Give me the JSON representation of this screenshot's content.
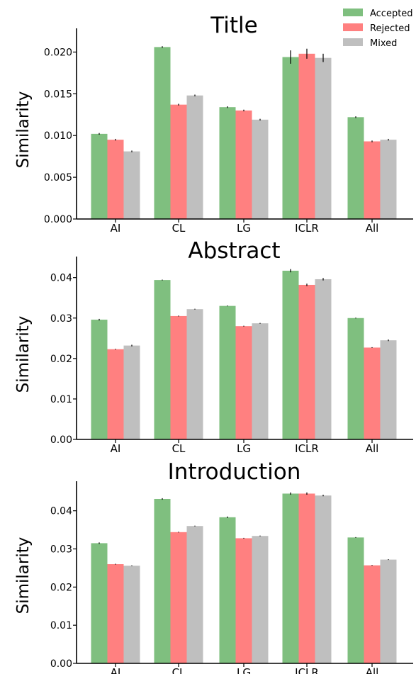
{
  "colors": {
    "accepted": "#7fbf7f",
    "rejected": "#ff8080",
    "mixed": "#bfbfbf",
    "axis": "#000000"
  },
  "legend": {
    "placement": "top-right",
    "items": [
      "Accepted",
      "Rejected",
      "Mixed"
    ]
  },
  "chart_data": [
    {
      "type": "bar",
      "title": "Title",
      "xlabel": "",
      "ylabel": "Similarity",
      "categories": [
        "AI",
        "CL",
        "LG",
        "ICLR",
        "All"
      ],
      "ylim": [
        0,
        0.0225
      ],
      "yticks": [
        0.0,
        0.005,
        0.01,
        0.015,
        0.02
      ],
      "ytick_labels": [
        "0.000",
        "0.005",
        "0.010",
        "0.015",
        "0.020"
      ],
      "grid": false,
      "series": [
        {
          "name": "Accepted",
          "values": [
            0.0102,
            0.0206,
            0.0134,
            0.0194,
            0.0122
          ],
          "errors": [
            0.0001,
            0.0001,
            0.0001,
            0.0008,
            0.0001
          ]
        },
        {
          "name": "Rejected",
          "values": [
            0.0095,
            0.0137,
            0.013,
            0.0198,
            0.0093
          ],
          "errors": [
            0.0001,
            0.0001,
            0.0001,
            0.0006,
            0.0001
          ]
        },
        {
          "name": "Mixed",
          "values": [
            0.0081,
            0.0148,
            0.0119,
            0.0193,
            0.0095
          ],
          "errors": [
            0.0001,
            0.0001,
            0.0001,
            0.0005,
            0.0001
          ]
        }
      ]
    },
    {
      "type": "bar",
      "title": "Abstract",
      "xlabel": "",
      "ylabel": "Similarity",
      "categories": [
        "AI",
        "CL",
        "LG",
        "ICLR",
        "All"
      ],
      "ylim": [
        0,
        0.0445
      ],
      "yticks": [
        0.0,
        0.01,
        0.02,
        0.03,
        0.04
      ],
      "ytick_labels": [
        "0.00",
        "0.01",
        "0.02",
        "0.03",
        "0.04"
      ],
      "grid": false,
      "series": [
        {
          "name": "Accepted",
          "values": [
            0.0296,
            0.0394,
            0.033,
            0.0417,
            0.03
          ],
          "errors": [
            0.0002,
            0.0001,
            0.0001,
            0.0004,
            0.0001
          ]
        },
        {
          "name": "Rejected",
          "values": [
            0.0223,
            0.0305,
            0.028,
            0.0382,
            0.0227
          ],
          "errors": [
            0.0001,
            0.0001,
            0.0001,
            0.0003,
            0.0001
          ]
        },
        {
          "name": "Mixed",
          "values": [
            0.0232,
            0.0322,
            0.0287,
            0.0396,
            0.0245
          ],
          "errors": [
            0.0002,
            0.0001,
            0.0001,
            0.0003,
            0.0002
          ]
        }
      ]
    },
    {
      "type": "bar",
      "title": "Introduction",
      "xlabel": "",
      "ylabel": "Similarity",
      "categories": [
        "AI",
        "CL",
        "LG",
        "ICLR",
        "All"
      ],
      "ylim": [
        0,
        0.047
      ],
      "yticks": [
        0.0,
        0.01,
        0.02,
        0.03,
        0.04
      ],
      "ytick_labels": [
        "0.00",
        "0.01",
        "0.02",
        "0.03",
        "0.04"
      ],
      "grid": false,
      "series": [
        {
          "name": "Accepted",
          "values": [
            0.0315,
            0.0431,
            0.0383,
            0.0445,
            0.033
          ],
          "errors": [
            0.0002,
            0.0002,
            0.0002,
            0.0003,
            0.0001
          ]
        },
        {
          "name": "Rejected",
          "values": [
            0.026,
            0.0344,
            0.0328,
            0.0445,
            0.0257
          ],
          "errors": [
            0.0001,
            0.0001,
            0.0001,
            0.0003,
            0.0001
          ]
        },
        {
          "name": "Mixed",
          "values": [
            0.0256,
            0.036,
            0.0334,
            0.044,
            0.0272
          ],
          "errors": [
            0.0001,
            0.0001,
            0.0001,
            0.0002,
            0.0001
          ]
        }
      ]
    }
  ]
}
